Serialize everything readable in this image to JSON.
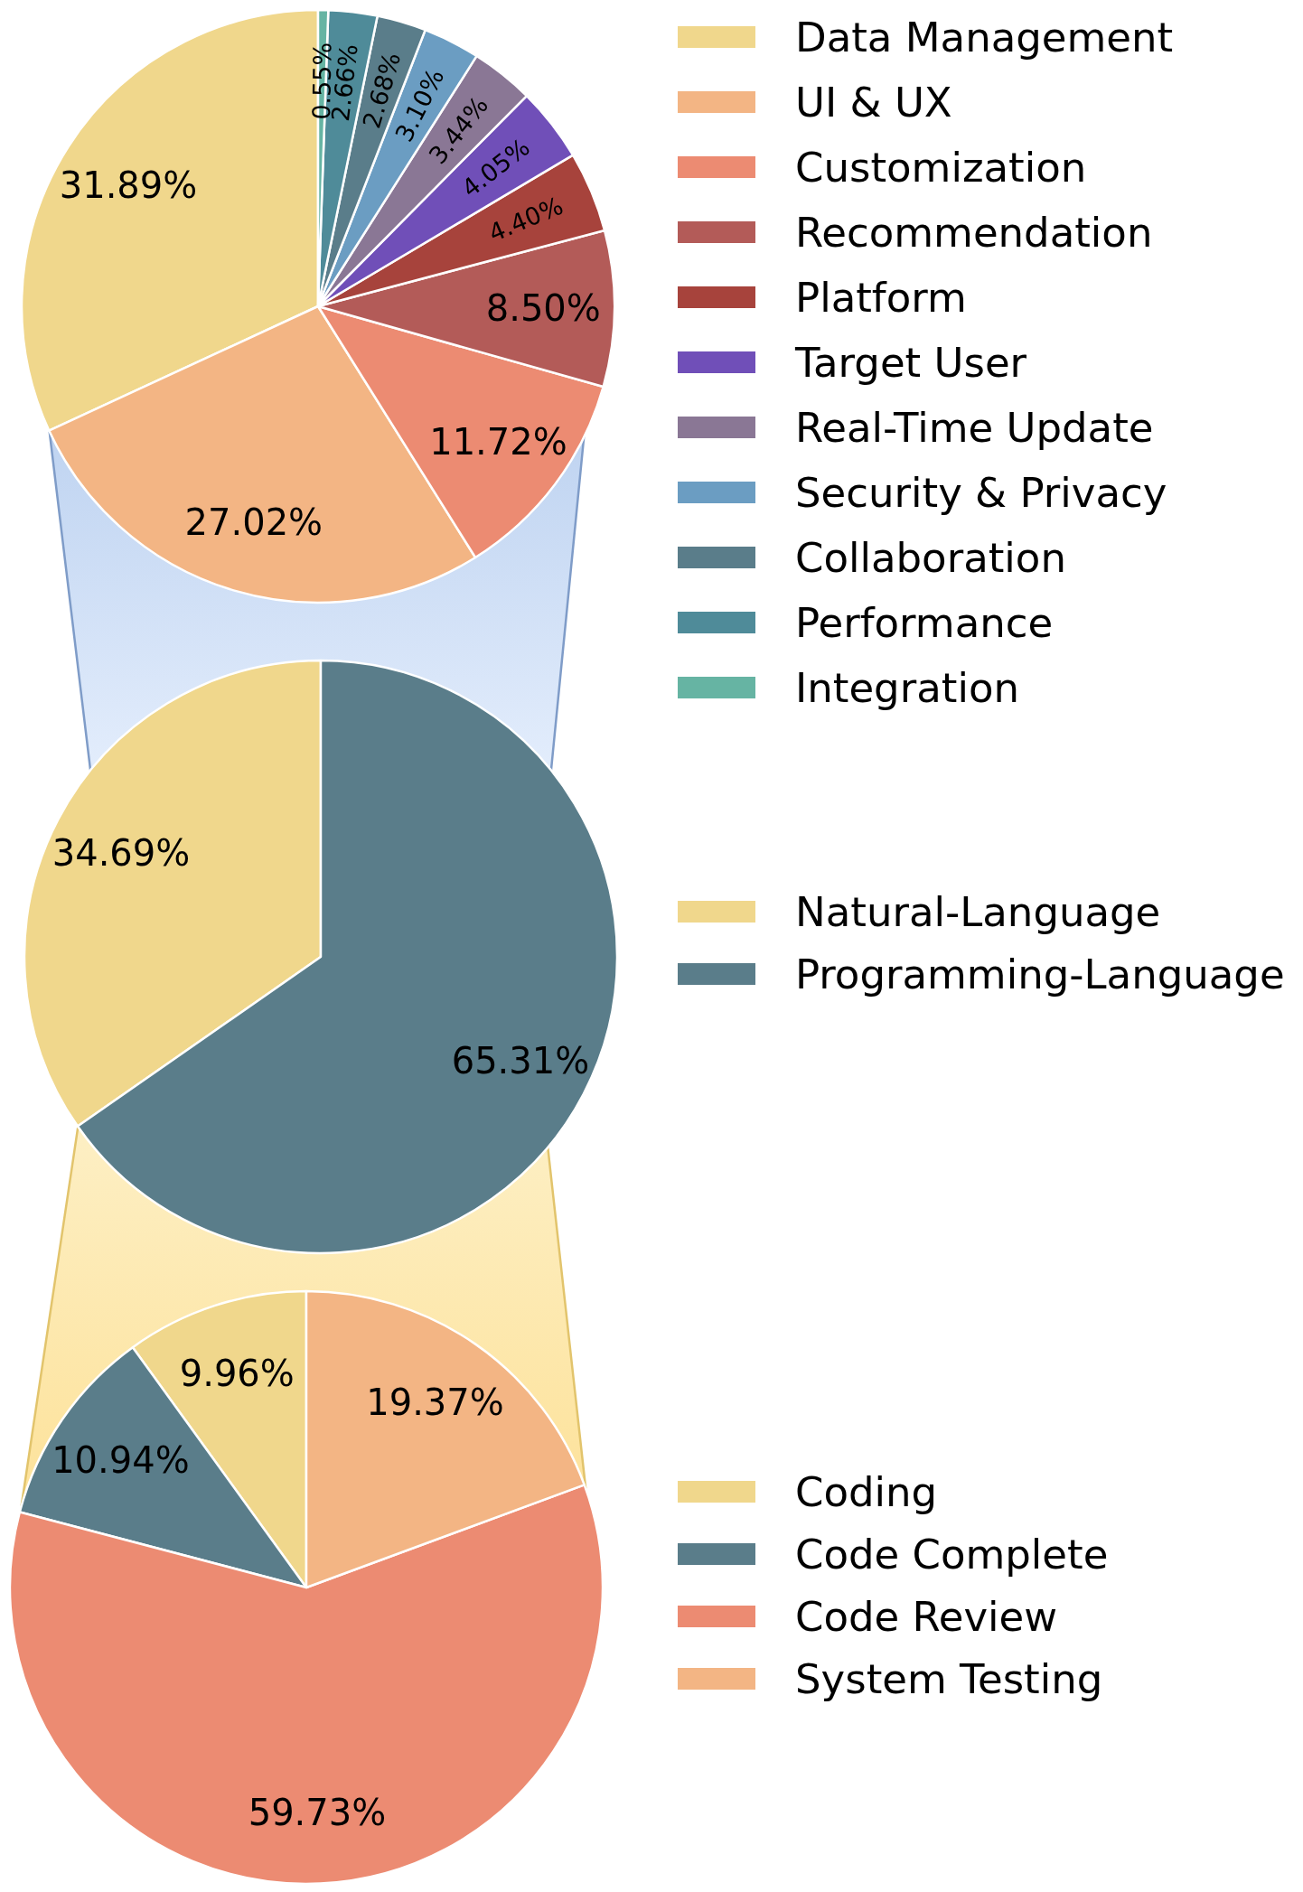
{
  "chart_data": [
    {
      "type": "pie",
      "categories": [
        "Data Management",
        "UI & UX",
        "Customization",
        "Recommendation",
        "Platform",
        "Target User",
        "Real-Time Update",
        "Security & Privacy",
        "Collaboration",
        "Performance",
        "Integration"
      ],
      "values": [
        31.89,
        27.02,
        11.72,
        8.5,
        4.4,
        4.05,
        3.44,
        3.1,
        2.68,
        2.66,
        0.55
      ],
      "value_labels": [
        "31.89%",
        "27.02%",
        "11.72%",
        "8.50%",
        "4.40%",
        "4.05%",
        "3.44%",
        "3.10%",
        "2.68%",
        "2.66%",
        "0.55%"
      ],
      "colors": [
        "#f0d78c",
        "#f3b584",
        "#ec8b72",
        "#b35b58",
        "#a7433c",
        "#704fb8",
        "#8a7795",
        "#6b9dc2",
        "#5a7d8a",
        "#4f8b99",
        "#66b4a3"
      ],
      "legend": "right"
    },
    {
      "type": "pie",
      "categories": [
        "Natural-Language",
        "Programming-Language"
      ],
      "values": [
        34.69,
        65.31
      ],
      "value_labels": [
        "34.69%",
        "65.31%"
      ],
      "colors": [
        "#f0d78c",
        "#5a7d8a"
      ],
      "legend": "right"
    },
    {
      "type": "pie",
      "categories": [
        "Coding",
        "Code Complete",
        "Code Review",
        "System Testing"
      ],
      "values": [
        9.96,
        10.94,
        59.73,
        19.37
      ],
      "value_labels": [
        "9.96%",
        "10.94%",
        "59.73%",
        "19.37%"
      ],
      "colors": [
        "#f0d78c",
        "#5a7d8a",
        "#ec8b72",
        "#f3b584"
      ],
      "legend": "right"
    }
  ]
}
